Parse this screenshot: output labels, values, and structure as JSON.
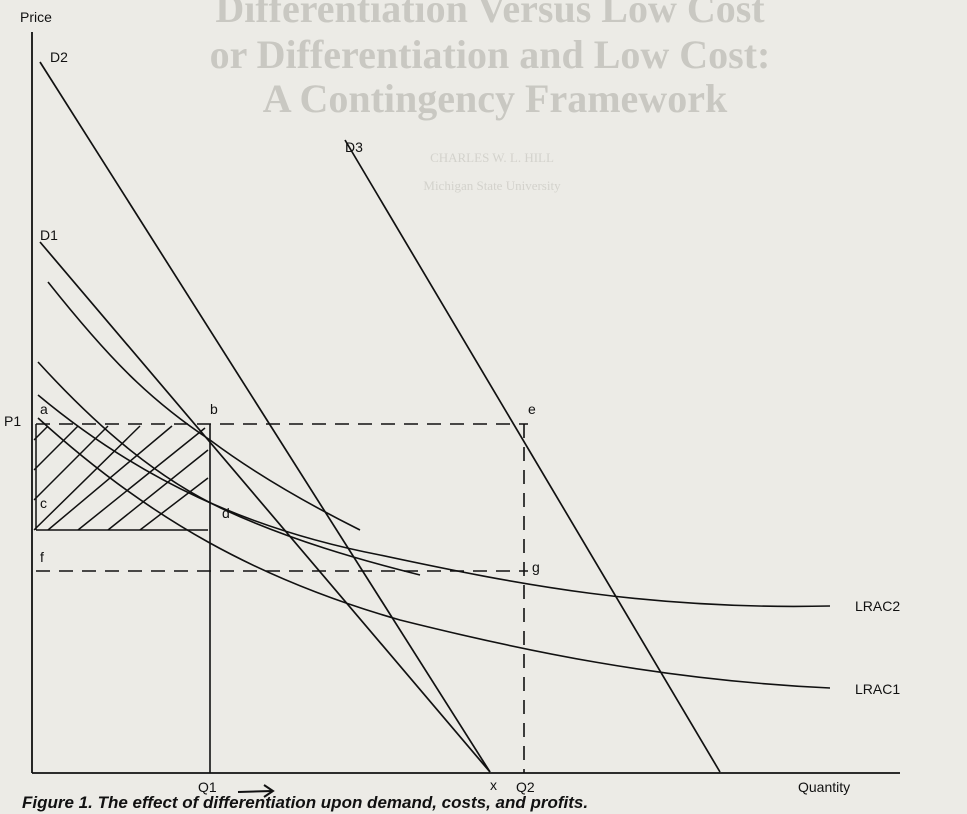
{
  "axes": {
    "y_label": "Price",
    "x_label": "Quantity"
  },
  "curves": {
    "demand_1": "D1",
    "demand_2": "D2",
    "demand_3": "D3",
    "cost_1": "LRAC1",
    "cost_2": "LRAC2"
  },
  "price_marker": "P1",
  "quantity_markers": {
    "q1": "Q1",
    "q2": "Q2",
    "x": "x"
  },
  "points": {
    "a": "a",
    "b": "b",
    "c": "c",
    "d": "d",
    "e": "e",
    "g": "g",
    "f": "f"
  },
  "caption": "Figure 1. The effect of differentiation upon demand, costs, and profits.",
  "background_page": {
    "title_lines": [
      "Differentiation Versus Low Cost",
      "or Differentiation and Low Cost:",
      "A Contingency Framework"
    ],
    "author": "CHARLES W. L. HILL",
    "affiliation": "Michigan State University"
  }
}
